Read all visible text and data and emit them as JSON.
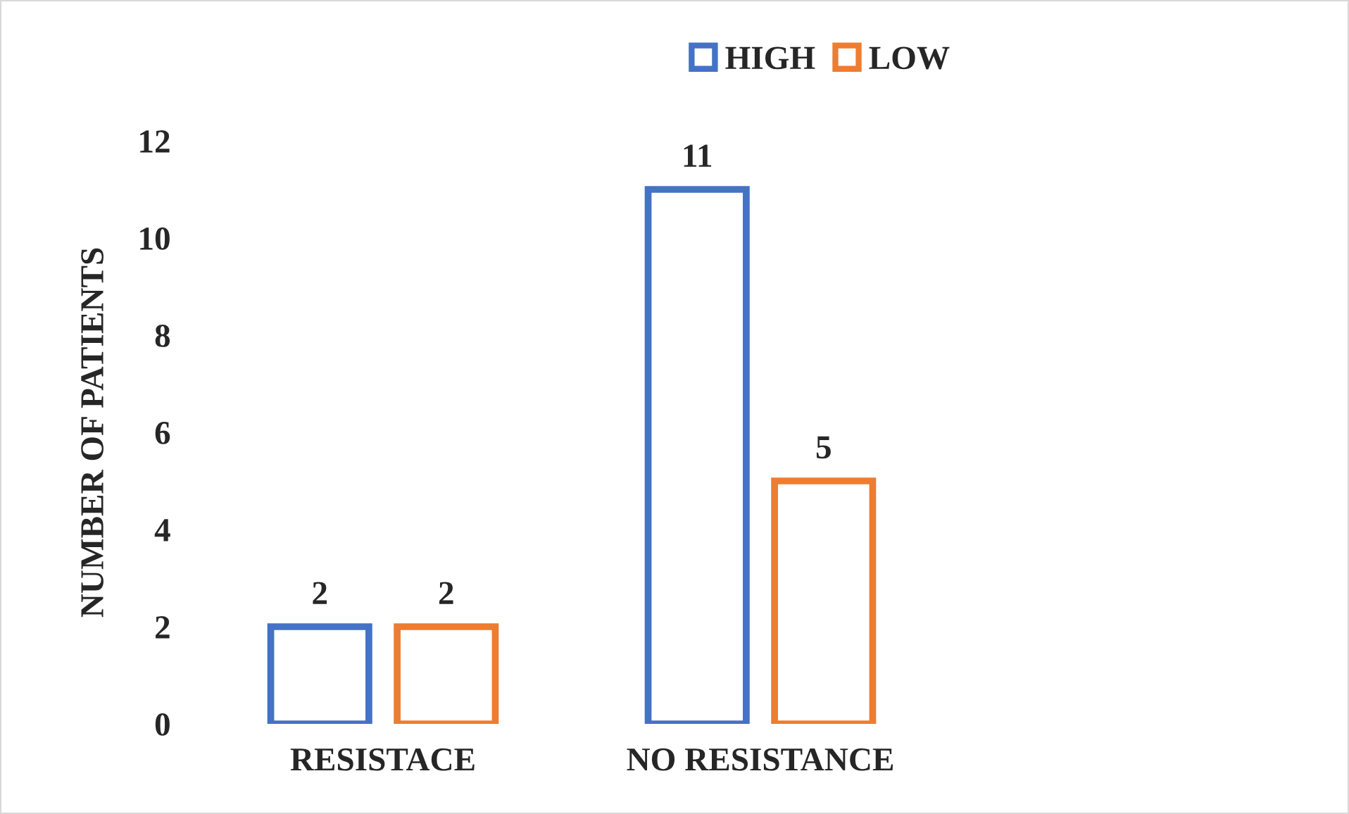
{
  "chart_data": {
    "type": "bar",
    "ylabel": "NUMBER OF PATIENTS",
    "categories": [
      "RESISTACE",
      "NO RESISTANCE"
    ],
    "series": [
      {
        "name": "HIGH",
        "color": "#4472c4",
        "values": [
          2,
          11
        ]
      },
      {
        "name": "LOW",
        "color": "#ed7d31",
        "values": [
          2,
          5
        ]
      }
    ],
    "ylim": [
      0,
      12
    ],
    "yticks": [
      0,
      2,
      4,
      6,
      8,
      10,
      12
    ],
    "grid": false,
    "legend": "top",
    "data_labels": true
  }
}
